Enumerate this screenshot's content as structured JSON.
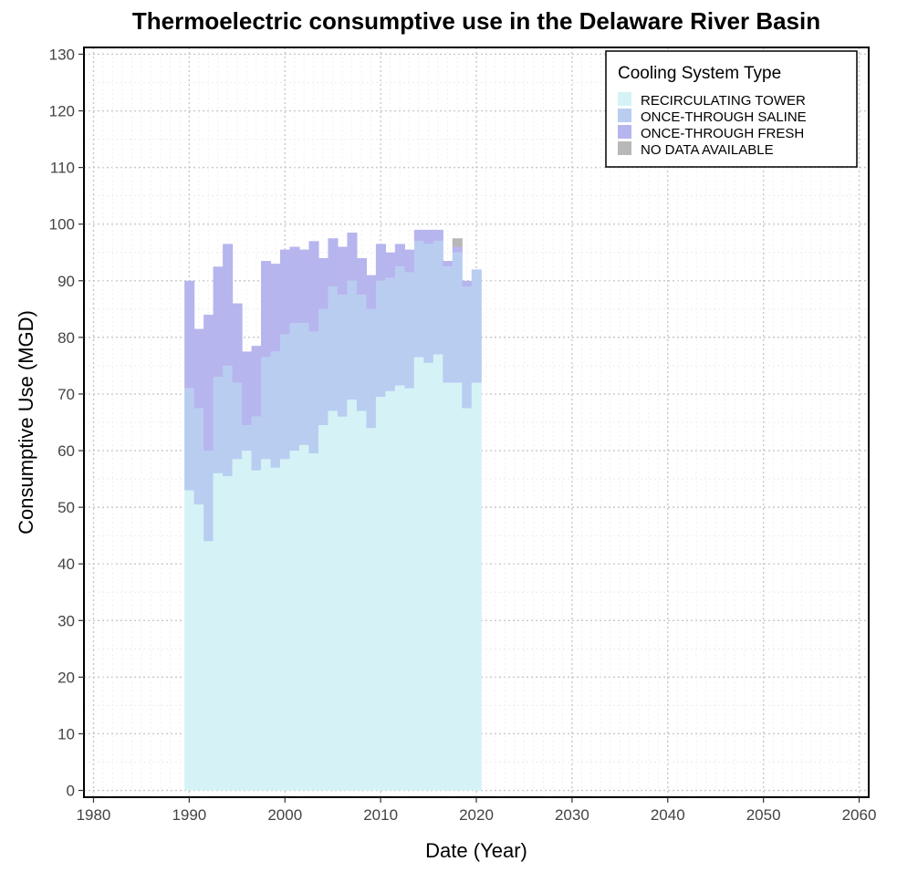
{
  "colors": {
    "recirculating_tower": "#d5f3f6",
    "once_through_saline": "#b9cdf1",
    "once_through_fresh": "#b7b5ee",
    "no_data": "#b8b8b8"
  },
  "chart_data": {
    "type": "area",
    "title": "Thermoelectric consumptive use in the Delaware River Basin",
    "xlabel": "Date (Year)",
    "ylabel": "Consumptive Use (MGD)",
    "xlim": [
      1980,
      2060
    ],
    "ylim": [
      0,
      130
    ],
    "x_ticks": [
      "1980",
      "1990",
      "2000",
      "2010",
      "2020",
      "2030",
      "2040",
      "2050",
      "2060"
    ],
    "y_ticks": [
      "0",
      "10",
      "20",
      "30",
      "40",
      "50",
      "60",
      "70",
      "80",
      "90",
      "100",
      "110",
      "120",
      "130"
    ],
    "grid": true,
    "stacked": true,
    "legend": {
      "title": "Cooling System Type",
      "position": "top-right",
      "entries": [
        "RECIRCULATING TOWER",
        "ONCE-THROUGH SALINE",
        "ONCE-THROUGH FRESH",
        "NO DATA AVAILABLE"
      ]
    },
    "x": [
      1990,
      1991,
      1992,
      1993,
      1994,
      1995,
      1996,
      1997,
      1998,
      1999,
      2000,
      2001,
      2002,
      2003,
      2004,
      2005,
      2006,
      2007,
      2008,
      2009,
      2010,
      2011,
      2012,
      2013,
      2014,
      2015,
      2016,
      2017,
      2018,
      2019,
      2020
    ],
    "series": [
      {
        "name": "RECIRCULATING TOWER",
        "color_key": "recirculating_tower",
        "values": [
          53,
          50.5,
          44,
          56,
          55.5,
          58.5,
          60,
          56.5,
          58.5,
          57,
          58.5,
          60,
          61,
          59.5,
          64.5,
          67,
          66,
          69,
          67,
          64,
          69.5,
          70.5,
          71.5,
          71,
          76.5,
          75.5,
          77,
          72,
          72,
          67.5,
          72
        ]
      },
      {
        "name": "ONCE-THROUGH SALINE",
        "color_key": "once_through_saline",
        "values": [
          18,
          17,
          16,
          17,
          19.5,
          13.5,
          4.5,
          9.5,
          18,
          20.5,
          22,
          22.5,
          21.5,
          21.5,
          20.5,
          22,
          21.5,
          21,
          20.5,
          21,
          20.5,
          20,
          21,
          20.5,
          20.5,
          21,
          20,
          20.5,
          23,
          21.5,
          20
        ]
      },
      {
        "name": "ONCE-THROUGH FRESH",
        "color_key": "once_through_fresh",
        "values": [
          19,
          14,
          24,
          19.5,
          21.5,
          14,
          13,
          12.5,
          17,
          15.5,
          15,
          13.5,
          13,
          16,
          9,
          8.5,
          8.5,
          8.5,
          6.5,
          6,
          6.5,
          4.5,
          4,
          4,
          2,
          2.5,
          2,
          1,
          1,
          1,
          0
        ]
      },
      {
        "name": "NO DATA AVAILABLE",
        "color_key": "no_data",
        "values": [
          0,
          0,
          0,
          0,
          0,
          0,
          0,
          0,
          0,
          0,
          0,
          0,
          0,
          0,
          0,
          0,
          0,
          0,
          0,
          0,
          0,
          0,
          0,
          0,
          0,
          0,
          0,
          0,
          1.5,
          0,
          0
        ]
      }
    ]
  }
}
